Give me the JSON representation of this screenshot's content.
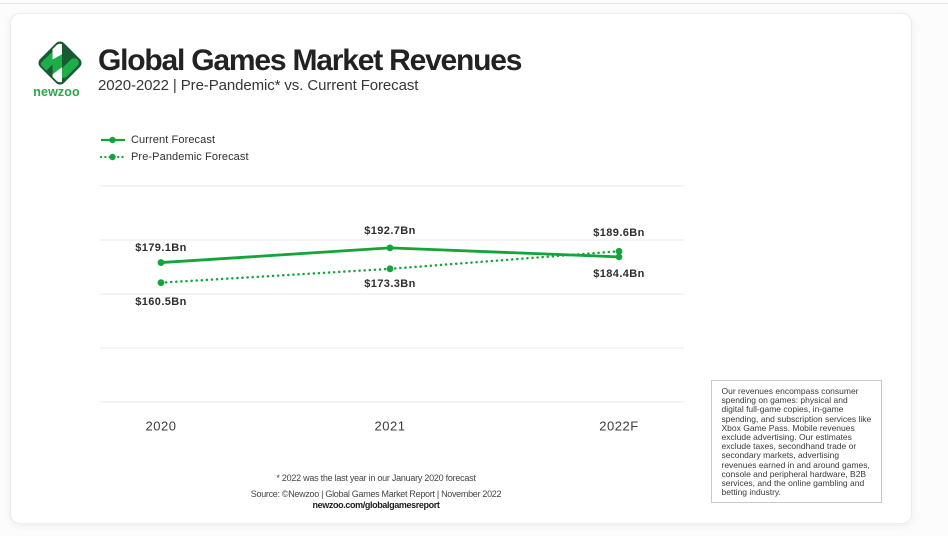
{
  "brand": {
    "logo_word": "newzoo",
    "colors": {
      "dark_green": "#175b33",
      "green": "#1fad4a",
      "chart_green": "#14a43c"
    }
  },
  "header": {
    "title": "Global Games Market Revenues",
    "subtitle": "2020-2022 | Pre-Pandemic* vs. Current Forecast"
  },
  "legend": {
    "items": [
      {
        "label": "Current Forecast",
        "style": "solid"
      },
      {
        "label": "Pre-Pandemic Forecast",
        "style": "dotted"
      }
    ]
  },
  "chart_data": {
    "type": "line",
    "categories": [
      "2020",
      "2021",
      "2022F"
    ],
    "series": [
      {
        "name": "Current Forecast",
        "style": "solid",
        "values": [
          179.1,
          192.7,
          184.4
        ],
        "labels": [
          "$179.1Bn",
          "$192.7Bn",
          "$184.4Bn"
        ]
      },
      {
        "name": "Pre-Pandemic Forecast",
        "style": "dotted",
        "values": [
          160.5,
          173.3,
          189.6
        ],
        "labels": [
          "$160.5Bn",
          "$173.3Bn",
          "$189.6Bn"
        ]
      }
    ],
    "unit": "USD billions",
    "ylim": [
      50,
      250
    ],
    "gridline_values": [
      250,
      200,
      150,
      100,
      50
    ],
    "grid": "horizontal-only",
    "y_axis_labels": "none",
    "legend_position": "top-left",
    "line_color": "#14a43c"
  },
  "footnotes": {
    "asterisk": "* 2022 was the last year in our January 2020 forecast",
    "source": "Source: ©Newzoo | Global Games Market Report | November 2022",
    "url": "newzoo.com/globalgamesreport"
  },
  "note_box": {
    "text": "Our revenues encompass consumer spending on games: physical and digital full-game copies, in-game spending, and subscription services like Xbox Game Pass. Mobile revenues exclude advertising. Our estimates exclude taxes, secondhand trade or secondary markets, advertising revenues earned in and around games, console and peripheral hardware, B2B services, and the online gambling and betting industry."
  }
}
